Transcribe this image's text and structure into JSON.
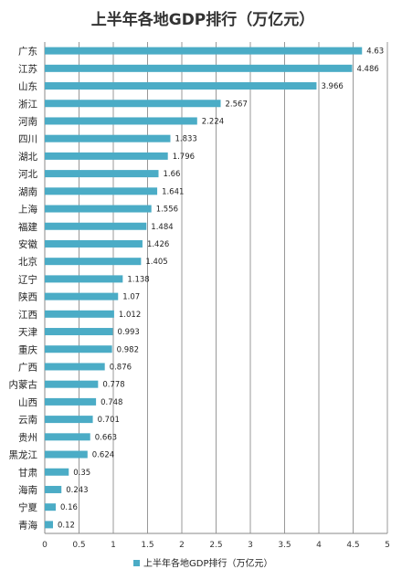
{
  "chart_data": {
    "type": "bar",
    "orientation": "horizontal",
    "title": "上半年各地GDP排行（万亿元）",
    "categories": [
      "广东",
      "江苏",
      "山东",
      "浙江",
      "河南",
      "四川",
      "湖北",
      "河北",
      "湖南",
      "上海",
      "福建",
      "安徽",
      "北京",
      "辽宁",
      "陕西",
      "江西",
      "天津",
      "重庆",
      "广西",
      "内蒙古",
      "山西",
      "云南",
      "贵州",
      "黑龙江",
      "甘肃",
      "海南",
      "宁夏",
      "青海"
    ],
    "series": [
      {
        "name": "上半年各地GDP排行（万亿元）",
        "color": "#4bacc6",
        "values": [
          4.63,
          4.486,
          3.966,
          2.567,
          2.224,
          1.833,
          1.796,
          1.66,
          1.641,
          1.556,
          1.484,
          1.426,
          1.405,
          1.138,
          1.07,
          1.012,
          0.993,
          0.982,
          0.876,
          0.778,
          0.748,
          0.701,
          0.663,
          0.624,
          0.35,
          0.243,
          0.16,
          0.12
        ]
      }
    ],
    "value_labels": [
      "4.63",
      "4.486",
      "3.966",
      "2.567",
      "2.224",
      "1.833",
      "1.796",
      "1.66",
      "1.641",
      "1.556",
      "1.484",
      "1.426",
      "1.405",
      "1.138",
      "1.07",
      "1.012",
      "0.993",
      "0.982",
      "0.876",
      "0.778",
      "0.748",
      "0.701",
      "0.663",
      "0.624",
      "0.35",
      "0.243",
      "0.16",
      "0.12"
    ],
    "xlim": [
      0,
      5
    ],
    "xticks": [
      "0",
      "0.5",
      "1",
      "1.5",
      "2",
      "2.5",
      "3",
      "3.5",
      "4",
      "4.5",
      "5"
    ],
    "grid": "vertical",
    "legend_position": "bottom"
  }
}
